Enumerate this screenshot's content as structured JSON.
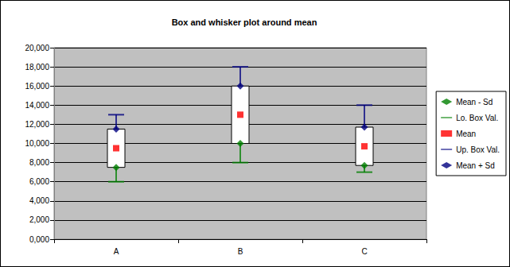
{
  "chart_data": {
    "type": "boxplot",
    "title": "Box and whisker plot around mean",
    "categories": [
      "A",
      "B",
      "C"
    ],
    "series": [
      {
        "name": "Mean - Sd",
        "color": "#008000",
        "marker": "diamond",
        "values": [
          7500,
          10000,
          7700
        ]
      },
      {
        "name": "Lo. Box Val.",
        "color": "#008000",
        "marker": "line",
        "values": [
          6000,
          8000,
          7000
        ]
      },
      {
        "name": "Mean",
        "color": "#ff0000",
        "marker": "square",
        "values": [
          9500,
          13000,
          9700
        ]
      },
      {
        "name": "Up. Box Val.",
        "color": "#000080",
        "marker": "line",
        "values": [
          13000,
          18000,
          14000
        ]
      },
      {
        "name": "Mean + Sd",
        "color": "#000080",
        "marker": "diamond",
        "values": [
          11500,
          16000,
          11700
        ]
      }
    ],
    "ylim": [
      0,
      20000
    ],
    "yticks": [
      {
        "value": 0,
        "label": "0,000"
      },
      {
        "value": 2000,
        "label": "2,000"
      },
      {
        "value": 4000,
        "label": "4,000"
      },
      {
        "value": 6000,
        "label": "6,000"
      },
      {
        "value": 8000,
        "label": "8,000"
      },
      {
        "value": 10000,
        "label": "10,000"
      },
      {
        "value": 12000,
        "label": "12,000"
      },
      {
        "value": 14000,
        "label": "14,000"
      },
      {
        "value": 16000,
        "label": "16,000"
      },
      {
        "value": 18000,
        "label": "18,000"
      },
      {
        "value": 20000,
        "label": "20,000"
      }
    ],
    "grid": true,
    "legend": "right"
  }
}
